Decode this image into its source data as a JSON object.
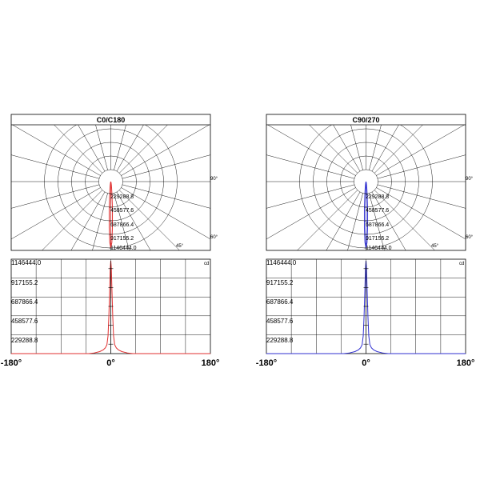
{
  "chart_data": [
    {
      "type": "polar",
      "title": "C0/C180",
      "unit": "cd",
      "radial_tick_labels": [
        "229288.8",
        "458577.6",
        "687866.4",
        "917155.2",
        "1146444.0"
      ],
      "angle_labels": [
        "90°",
        "60°",
        "45°"
      ],
      "curve_color": "#e03030",
      "rmax": 1146444.0,
      "angles_deg": [
        -20,
        -14,
        -10,
        -7,
        -5,
        -3.5,
        -2,
        -1,
        0,
        1,
        2,
        3.5,
        5,
        7,
        10,
        14,
        20
      ],
      "intensities": [
        0,
        20000,
        60000,
        120000,
        230000,
        460000,
        800000,
        1050000,
        1146444,
        1050000,
        800000,
        460000,
        230000,
        120000,
        60000,
        20000,
        0
      ]
    },
    {
      "type": "polar",
      "title": "C90/270",
      "unit": "cd",
      "radial_tick_labels": [
        "229288.8",
        "458577.6",
        "687866.4",
        "917155.2",
        "1146444.0"
      ],
      "angle_labels": [
        "90°",
        "60°",
        "45°"
      ],
      "curve_color": "#3030d0",
      "rmax": 1146444.0,
      "angles_deg": [
        -20,
        -14,
        -10,
        -7,
        -5,
        -3.5,
        -2,
        -1,
        0,
        1,
        2,
        3.5,
        5,
        7,
        10,
        14,
        20
      ],
      "intensities": [
        0,
        20000,
        60000,
        120000,
        230000,
        460000,
        800000,
        1050000,
        1146444,
        1050000,
        800000,
        460000,
        230000,
        120000,
        60000,
        20000,
        0
      ]
    },
    {
      "type": "line",
      "unit": "cd",
      "y_tick_labels": [
        "1146444.0",
        "917155.2",
        "687866.4",
        "458577.6",
        "229288.8"
      ],
      "x_tick_labels": [
        "-180°",
        "0°",
        "180°"
      ],
      "xlim": [
        -180,
        180
      ],
      "ylim": [
        0,
        1146444.0
      ],
      "curve_color": "#e03030",
      "x": [
        -180,
        -40,
        -30,
        -20,
        -14,
        -10,
        -7,
        -5,
        -3.5,
        -2,
        -1,
        0,
        1,
        2,
        3.5,
        5,
        7,
        10,
        14,
        20,
        30,
        40,
        180
      ],
      "y": [
        0,
        0,
        8000,
        25000,
        45000,
        70000,
        110000,
        220000,
        460000,
        800000,
        1050000,
        1146444,
        1050000,
        800000,
        460000,
        220000,
        110000,
        70000,
        45000,
        25000,
        8000,
        0,
        0
      ]
    },
    {
      "type": "line",
      "unit": "cd",
      "y_tick_labels": [
        "1146444.0",
        "917155.2",
        "687866.4",
        "458577.6",
        "229288.8"
      ],
      "x_tick_labels": [
        "-180°",
        "0°",
        "180°"
      ],
      "xlim": [
        -180,
        180
      ],
      "ylim": [
        0,
        1146444.0
      ],
      "curve_color": "#3030d0",
      "x": [
        -180,
        -40,
        -30,
        -20,
        -14,
        -10,
        -7,
        -5,
        -3.5,
        -2,
        -1,
        0,
        1,
        2,
        3.5,
        5,
        7,
        10,
        14,
        20,
        30,
        40,
        180
      ],
      "y": [
        0,
        0,
        8000,
        25000,
        45000,
        70000,
        110000,
        220000,
        460000,
        800000,
        1050000,
        1146444,
        1050000,
        800000,
        460000,
        220000,
        110000,
        70000,
        45000,
        25000,
        8000,
        0,
        0
      ]
    }
  ]
}
